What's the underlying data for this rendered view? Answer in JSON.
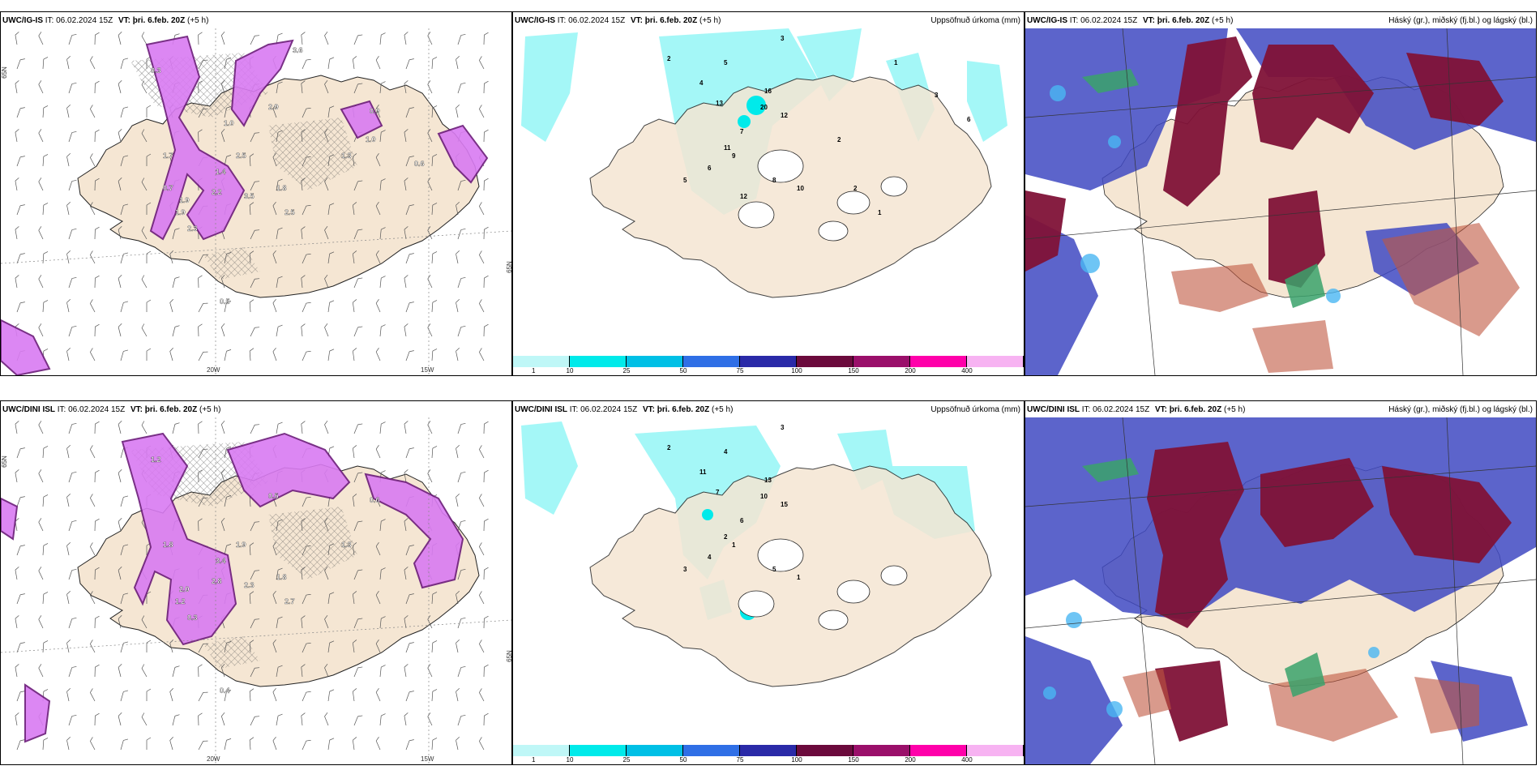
{
  "colors": {
    "land": "#f5e6d3",
    "precip_light": "#9ff7f7",
    "precip_mid": "#00eaea",
    "wind_purple": "#d97bf2",
    "cloud_high": "#7f1237",
    "cloud_mid": "#3f49c2",
    "cloud_low": "#4ab6f2"
  },
  "panels": [
    {
      "model": "UWC/IG-IS",
      "it": "IT: 06.02.2024 15Z",
      "vt_key": "VT:",
      "vt_value": "þri. 6.feb. 20Z",
      "lead": "(+5 h)",
      "right": "",
      "kind": "wind",
      "lon_labels": [
        "20W",
        "15W"
      ],
      "lat_labels": [
        "65N",
        "65N"
      ],
      "labels": [
        "0.3",
        "1.7",
        "1.9",
        "2.5",
        "3.5",
        "2.2",
        "1.4",
        "1.8",
        "2.9",
        "2.5",
        "1.3",
        "0.5",
        "1.9",
        "2.3",
        "0.9",
        "0.7",
        "1.0",
        "3.6",
        "0.6",
        "1.0"
      ]
    },
    {
      "model": "UWC/IG-IS",
      "it": "IT: 06.02.2024 15Z",
      "vt_key": "VT:",
      "vt_value": "þri. 6.feb. 20Z",
      "lead": "(+5 h)",
      "right": "Uppsöfnuð úrkoma (mm)",
      "kind": "precip",
      "labels": [
        "3",
        "2",
        "5",
        "4",
        "16",
        "20",
        "13",
        "12",
        "7",
        "11",
        "9",
        "6",
        "5",
        "8",
        "10",
        "12",
        "2",
        "1",
        "3",
        "6",
        "2",
        "1"
      ]
    },
    {
      "model": "UWC/IG-IS",
      "it": "IT: 06.02.2024 15Z",
      "vt_key": "VT:",
      "vt_value": "þri. 6.feb. 20Z",
      "lead": "(+5 h)",
      "right": "Háský (gr.), miðský (fj.bl.) og lágský (bl.)",
      "kind": "cloud"
    },
    {
      "model": "UWC/DINI ISL",
      "it": "IT: 06.02.2024 15Z",
      "vt_key": "VT:",
      "vt_value": "þri. 6.feb. 20Z",
      "lead": "(+5 h)",
      "right": "",
      "kind": "wind",
      "lon_labels": [
        "20W",
        "15W"
      ],
      "lat_labels": [
        "65N",
        "65N"
      ],
      "labels": [
        "1.2",
        "1.8",
        "2.0",
        "1.9",
        "2.3",
        "2.8",
        "3.4",
        "1.8",
        "0.5",
        "2.7",
        "1.3",
        "0.4",
        "1.2",
        "0.3",
        "0.6"
      ]
    },
    {
      "model": "UWC/DINI ISL",
      "it": "IT: 06.02.2024 15Z",
      "vt_key": "VT:",
      "vt_value": "þri. 6.feb. 20Z",
      "lead": "(+5 h)",
      "right": "Uppsöfnuð úrkoma (mm)",
      "kind": "precip",
      "labels": [
        "3",
        "2",
        "4",
        "11",
        "13",
        "10",
        "7",
        "15",
        "6",
        "2",
        "1",
        "4",
        "3",
        "5",
        "1"
      ]
    },
    {
      "model": "UWC/DINI ISL",
      "it": "IT: 06.02.2024 15Z",
      "vt_key": "VT:",
      "vt_value": "þri. 6.feb. 20Z",
      "lead": "(+5 h)",
      "right": "Háský (gr.), miðský (fj.bl.) og lágský (bl.)",
      "kind": "cloud"
    }
  ],
  "colorbar": {
    "ticks": [
      "1",
      "10",
      "25",
      "50",
      "75",
      "100",
      "150",
      "200",
      "400"
    ],
    "colors": [
      "#bff7f7",
      "#00eaea",
      "#00c0e6",
      "#2f6fe6",
      "#2a2aa8",
      "#6b0a3c",
      "#9a0f6a",
      "#ff00aa",
      "#f7b3f2"
    ]
  }
}
